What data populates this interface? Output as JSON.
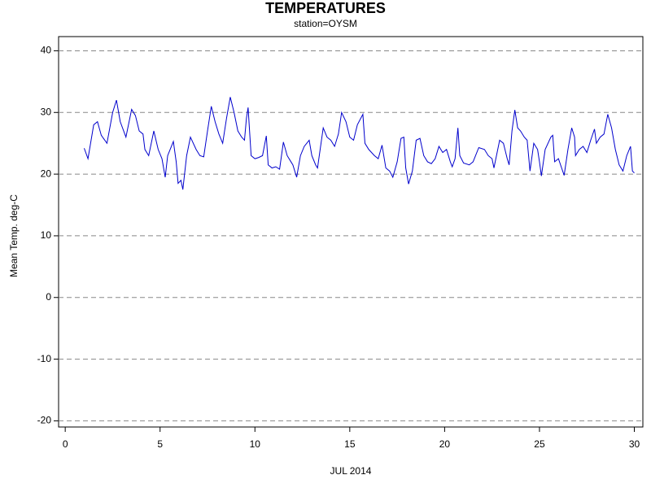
{
  "chart_data": {
    "type": "line",
    "title": "TEMPERATURES",
    "subtitle": "station=OYSM",
    "x_label": "JUL 2014",
    "y_label": "Mean Temp. deg-C",
    "xlim": [
      -0.35,
      30.45
    ],
    "xticks": [
      0,
      5,
      10,
      15,
      20,
      25,
      30
    ],
    "ylim": [
      -21,
      42.3
    ],
    "yticks": [
      -20,
      -10,
      0,
      10,
      20,
      30,
      40
    ],
    "grid": true,
    "series": [
      {
        "name": null,
        "color": "#0000cc",
        "x": [
          1.0,
          1.2,
          1.5,
          1.7,
          1.9,
          2.2,
          2.5,
          2.7,
          2.9,
          3.2,
          3.5,
          3.7,
          3.9,
          4.1,
          4.2,
          4.4,
          4.67,
          4.9,
          5.1,
          5.27,
          5.4,
          5.7,
          5.85,
          5.95,
          6.1,
          6.2,
          6.4,
          6.6,
          6.9,
          7.1,
          7.3,
          7.5,
          7.7,
          7.9,
          8.1,
          8.3,
          8.5,
          8.7,
          8.9,
          9.1,
          9.3,
          9.45,
          9.55,
          9.64,
          9.8,
          10.0,
          10.2,
          10.4,
          10.6,
          10.7,
          10.9,
          11.1,
          11.3,
          11.5,
          11.7,
          11.9,
          12.0,
          12.2,
          12.4,
          12.6,
          12.86,
          13.0,
          13.2,
          13.3,
          13.6,
          13.8,
          14.0,
          14.2,
          14.4,
          14.57,
          14.8,
          15.0,
          15.2,
          15.4,
          15.69,
          15.8,
          16.0,
          16.3,
          16.5,
          16.7,
          16.9,
          17.1,
          17.27,
          17.5,
          17.7,
          17.85,
          17.95,
          18.1,
          18.3,
          18.5,
          18.7,
          18.9,
          19.1,
          19.3,
          19.5,
          19.7,
          19.9,
          20.1,
          20.3,
          20.4,
          20.55,
          20.7,
          20.8,
          21.0,
          21.3,
          21.5,
          21.8,
          22.1,
          22.3,
          22.5,
          22.6,
          22.9,
          23.1,
          23.3,
          23.4,
          23.55,
          23.7,
          23.85,
          24.0,
          24.2,
          24.35,
          24.5,
          24.7,
          24.9,
          25.0,
          25.1,
          25.3,
          25.6,
          25.7,
          25.8,
          26.0,
          26.3,
          26.5,
          26.7,
          26.85,
          26.9,
          27.1,
          27.3,
          27.5,
          27.7,
          27.9,
          28.0,
          28.2,
          28.4,
          28.6,
          28.8,
          29.0,
          29.2,
          29.4,
          29.6,
          29.8,
          29.9,
          30.0
        ],
        "values": [
          24.2,
          22.5,
          28,
          28.5,
          26.3,
          25,
          30,
          32,
          28.5,
          26,
          30.5,
          29.5,
          27,
          26.5,
          24,
          23,
          27,
          24,
          22.5,
          19.5,
          23,
          25.3,
          22,
          18.5,
          19,
          17.5,
          23,
          26,
          24,
          23,
          22.8,
          27,
          31,
          28.5,
          26.5,
          25,
          29,
          32.5,
          30,
          27,
          26,
          25.5,
          29,
          30.8,
          23,
          22.5,
          22.7,
          23,
          26.2,
          21.5,
          21,
          21.2,
          20.8,
          25.2,
          23,
          22,
          21.5,
          19.5,
          23,
          24.5,
          25.5,
          23,
          21.5,
          21,
          27.5,
          26,
          25.5,
          24.5,
          26.5,
          30,
          28.5,
          26,
          25.5,
          28,
          29.7,
          25,
          24,
          23,
          22.5,
          24.7,
          21,
          20.5,
          19.5,
          22,
          25.8,
          26,
          21,
          18.4,
          20.5,
          25.5,
          25.8,
          23,
          22,
          21.7,
          22.5,
          24.5,
          23.5,
          24,
          22,
          21.2,
          22.5,
          27.5,
          23,
          21.8,
          21.5,
          22,
          24.3,
          24,
          23,
          22.5,
          21,
          25.5,
          25,
          22.5,
          21.5,
          27,
          30.4,
          27.5,
          27,
          26,
          25.5,
          20.5,
          25,
          24,
          22,
          19.7,
          24,
          26,
          26.3,
          22,
          22.5,
          19.8,
          24,
          27.5,
          26,
          23,
          24,
          24.5,
          23.5,
          25.5,
          27.3,
          25,
          26,
          26.5,
          29.7,
          27.5,
          24,
          21.5,
          20.5,
          23,
          24.5,
          20.5,
          20.2
        ]
      }
    ]
  }
}
